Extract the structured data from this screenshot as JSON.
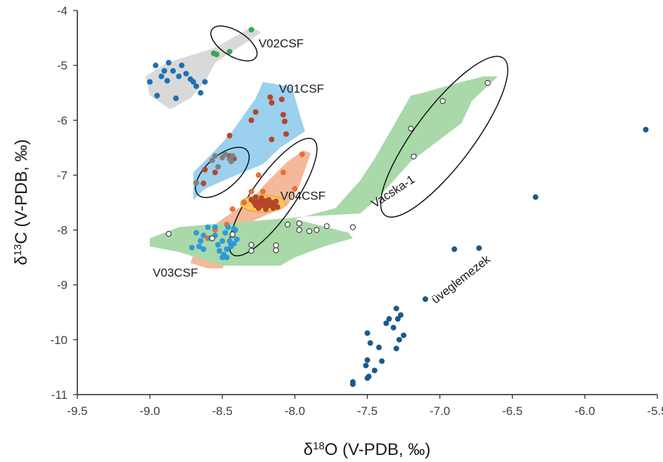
{
  "chart_data": {
    "type": "scatter",
    "x_axis": {
      "label_symbol": "δ",
      "label_sup": "18",
      "label_rest": "O (V-PDB, ‰)",
      "lim": [
        -9.5,
        -5.5
      ],
      "ticks": [
        -9.5,
        -9.0,
        -8.5,
        -8.0,
        -7.5,
        -7.0,
        -6.5,
        -6.0,
        -5.5
      ],
      "tick_labels": [
        "-9.5",
        "-9.0",
        "-8.5",
        "-8.0",
        "-7.5",
        "-7.0",
        "-6.5",
        "-6.0",
        "-5.5"
      ]
    },
    "y_axis": {
      "label_symbol": "δ",
      "label_sup": "13",
      "label_rest": "C (V-PDB, ‰)",
      "lim": [
        -11,
        -4
      ],
      "ticks": [
        -11,
        -10,
        -9,
        -8,
        -7,
        -6,
        -5,
        -4
      ],
      "tick_labels": [
        "-11",
        "-10",
        "-9",
        "-8",
        "-7",
        "-6",
        "-5",
        "-4"
      ]
    },
    "grid": false,
    "regions": [
      {
        "name": "gray",
        "color": "#d9d9d9",
        "points": [
          [
            -9.03,
            -5.2
          ],
          [
            -8.88,
            -4.95
          ],
          [
            -8.55,
            -4.68
          ],
          [
            -8.3,
            -4.3
          ],
          [
            -8.23,
            -4.4
          ],
          [
            -8.55,
            -4.95
          ],
          [
            -8.62,
            -5.3
          ],
          [
            -8.72,
            -5.6
          ],
          [
            -8.86,
            -5.8
          ],
          [
            -9.0,
            -5.55
          ]
        ]
      },
      {
        "name": "blue",
        "color": "#9bd0ee",
        "points": [
          [
            -8.7,
            -6.95
          ],
          [
            -8.55,
            -6.55
          ],
          [
            -8.43,
            -6.2
          ],
          [
            -8.27,
            -5.6
          ],
          [
            -8.22,
            -5.3
          ],
          [
            -8.02,
            -5.4
          ],
          [
            -7.96,
            -5.95
          ],
          [
            -7.93,
            -6.2
          ],
          [
            -8.1,
            -6.5
          ],
          [
            -8.22,
            -6.8
          ],
          [
            -8.45,
            -7.05
          ],
          [
            -8.62,
            -7.25
          ],
          [
            -8.7,
            -7.45
          ]
        ]
      },
      {
        "name": "orange",
        "color": "#f4b89a",
        "points": [
          [
            -8.72,
            -8.6
          ],
          [
            -8.65,
            -8.1
          ],
          [
            -8.5,
            -7.8
          ],
          [
            -8.3,
            -7.45
          ],
          [
            -8.2,
            -7.15
          ],
          [
            -8.05,
            -6.75
          ],
          [
            -7.94,
            -6.55
          ],
          [
            -7.89,
            -6.6
          ],
          [
            -7.97,
            -7.2
          ],
          [
            -8.05,
            -7.55
          ],
          [
            -8.3,
            -7.85
          ],
          [
            -8.4,
            -8.2
          ],
          [
            -8.5,
            -8.7
          ],
          [
            -8.6,
            -8.7
          ]
        ]
      },
      {
        "name": "green",
        "color": "#a9d8a9",
        "points": [
          [
            -9.0,
            -8.15
          ],
          [
            -8.8,
            -7.95
          ],
          [
            -8.6,
            -7.9
          ],
          [
            -8.35,
            -7.85
          ],
          [
            -7.9,
            -7.75
          ],
          [
            -7.55,
            -7.7
          ],
          [
            -7.42,
            -7.4
          ],
          [
            -7.2,
            -6.75
          ],
          [
            -6.85,
            -6.05
          ],
          [
            -6.78,
            -5.65
          ],
          [
            -6.6,
            -5.2
          ],
          [
            -6.7,
            -5.2
          ],
          [
            -6.85,
            -5.3
          ],
          [
            -7.12,
            -5.5
          ],
          [
            -7.2,
            -5.55
          ],
          [
            -7.45,
            -6.7
          ],
          [
            -7.55,
            -7.1
          ],
          [
            -7.72,
            -7.6
          ],
          [
            -8.0,
            -7.8
          ],
          [
            -7.63,
            -8.05
          ],
          [
            -7.6,
            -8.15
          ],
          [
            -7.8,
            -8.3
          ],
          [
            -8.0,
            -8.5
          ],
          [
            -8.1,
            -8.65
          ],
          [
            -8.5,
            -8.65
          ],
          [
            -8.8,
            -8.4
          ],
          [
            -9.0,
            -8.3
          ]
        ]
      }
    ],
    "ellipses": [
      {
        "name": "V02CSF",
        "fill": "none",
        "cx": -8.42,
        "cy": -4.6,
        "rx_deg": 0.18,
        "ry": 0.28,
        "angle": 0
      },
      {
        "name": "Vacska-1",
        "fill": "none",
        "cx": -6.97,
        "cy": -6.3,
        "rx_deg": 0.28,
        "ry": 1.25,
        "angle": 0
      },
      {
        "name": "V03CSF",
        "fill": "none",
        "cx": -8.5,
        "cy": -6.95,
        "rx_deg": 0.19,
        "ry": 0.45,
        "angle": 0
      },
      {
        "name": "V04CSF outer",
        "fill": "none",
        "cx": -8.15,
        "cy": -7.4,
        "rx_deg": 0.2,
        "ry": 0.62,
        "angle": 0
      },
      {
        "name": "V04CSF inner",
        "fill": "#f7c75a",
        "cx": -8.22,
        "cy": -7.52,
        "rx_deg": 0.14,
        "ry": 0.14,
        "angle": 0
      }
    ],
    "series": [
      {
        "color": "#1f6fb5",
        "marker": "filled",
        "points": [
          [
            -9.0,
            -5.3
          ],
          [
            -8.96,
            -5.0
          ],
          [
            -8.92,
            -5.2
          ],
          [
            -8.9,
            -5.1
          ],
          [
            -8.88,
            -5.28
          ],
          [
            -8.84,
            -5.1
          ],
          [
            -8.82,
            -5.6
          ],
          [
            -8.8,
            -5.2
          ],
          [
            -8.78,
            -5.0
          ],
          [
            -8.75,
            -5.15
          ],
          [
            -8.72,
            -5.25
          ],
          [
            -8.7,
            -5.3
          ],
          [
            -8.68,
            -5.38
          ],
          [
            -8.65,
            -5.5
          ],
          [
            -8.62,
            -5.3
          ],
          [
            -8.87,
            -4.95
          ],
          [
            -8.95,
            -5.55
          ]
        ]
      },
      {
        "color": "#38a852",
        "marker": "filled",
        "points": [
          [
            -8.56,
            -4.78
          ],
          [
            -8.54,
            -4.8
          ],
          [
            -8.45,
            -4.75
          ],
          [
            -8.3,
            -4.35
          ]
        ]
      },
      {
        "color": "#b5462a",
        "marker": "filled",
        "points": [
          [
            -8.17,
            -5.58
          ],
          [
            -8.16,
            -5.68
          ],
          [
            -8.09,
            -5.62
          ],
          [
            -8.08,
            -5.9
          ],
          [
            -8.07,
            -6.02
          ],
          [
            -8.27,
            -5.85
          ],
          [
            -8.3,
            -6.0
          ],
          [
            -8.45,
            -6.28
          ],
          [
            -8.16,
            -6.35
          ],
          [
            -8.06,
            -6.25
          ],
          [
            -8.62,
            -6.9
          ],
          [
            -8.63,
            -7.15
          ],
          [
            -8.55,
            -6.95
          ],
          [
            -8.45,
            -6.65
          ],
          [
            -8.42,
            -6.7
          ]
        ]
      },
      {
        "color": "#808080",
        "marker": "filled",
        "points": [
          [
            -8.68,
            -7.14
          ],
          [
            -8.57,
            -6.73
          ],
          [
            -8.55,
            -6.65
          ],
          [
            -8.5,
            -6.68
          ],
          [
            -8.48,
            -6.62
          ],
          [
            -8.45,
            -6.7
          ],
          [
            -8.44,
            -6.75
          ],
          [
            -8.53,
            -6.85
          ],
          [
            -8.43,
            -6.65
          ]
        ]
      },
      {
        "color": "#e8703a",
        "marker": "filled",
        "points": [
          [
            -7.95,
            -6.62
          ],
          [
            -8.08,
            -6.95
          ],
          [
            -8.25,
            -7.0
          ],
          [
            -8.3,
            -7.3
          ],
          [
            -8.35,
            -7.5
          ],
          [
            -8.43,
            -7.62
          ],
          [
            -8.47,
            -7.9
          ],
          [
            -8.55,
            -8.0
          ],
          [
            -8.6,
            -8.15
          ],
          [
            -8.22,
            -7.3
          ],
          [
            -8.0,
            -7.25
          ]
        ]
      },
      {
        "color": "#b5462a",
        "marker": "filled",
        "points": [
          [
            -8.3,
            -7.45
          ],
          [
            -8.28,
            -7.5
          ],
          [
            -8.27,
            -7.55
          ],
          [
            -8.26,
            -7.48
          ],
          [
            -8.25,
            -7.6
          ],
          [
            -8.24,
            -7.5
          ],
          [
            -8.23,
            -7.42
          ],
          [
            -8.22,
            -7.55
          ],
          [
            -8.21,
            -7.47
          ],
          [
            -8.2,
            -7.58
          ],
          [
            -8.19,
            -7.5
          ],
          [
            -8.18,
            -7.45
          ],
          [
            -8.17,
            -7.55
          ],
          [
            -8.16,
            -7.5
          ],
          [
            -8.15,
            -7.6
          ],
          [
            -8.14,
            -7.52
          ],
          [
            -8.13,
            -7.48
          ],
          [
            -8.12,
            -7.58
          ],
          [
            -8.2,
            -7.62
          ],
          [
            -8.27,
            -7.4
          ]
        ]
      },
      {
        "color": "#2e9ad8",
        "marker": "filled",
        "points": [
          [
            -8.71,
            -8.32
          ],
          [
            -8.68,
            -8.05
          ],
          [
            -8.65,
            -8.2
          ],
          [
            -8.63,
            -8.35
          ],
          [
            -8.6,
            -7.95
          ],
          [
            -8.58,
            -8.15
          ],
          [
            -8.55,
            -8.1
          ],
          [
            -8.53,
            -8.27
          ],
          [
            -8.5,
            -8.2
          ],
          [
            -8.49,
            -8.45
          ],
          [
            -8.48,
            -8.05
          ],
          [
            -8.47,
            -8.35
          ],
          [
            -8.46,
            -7.95
          ],
          [
            -8.45,
            -8.2
          ],
          [
            -8.44,
            -8.3
          ],
          [
            -8.43,
            -8.1
          ],
          [
            -8.42,
            -7.98
          ],
          [
            -8.42,
            -8.25
          ],
          [
            -8.41,
            -8.0
          ],
          [
            -8.5,
            -8.5
          ],
          [
            -8.47,
            -8.5
          ],
          [
            -8.55,
            -7.95
          ],
          [
            -8.63,
            -8.1
          ],
          [
            -8.66,
            -8.3
          ],
          [
            -8.52,
            -8.38
          ],
          [
            -8.4,
            -8.17
          ]
        ]
      },
      {
        "color": "#ffffff",
        "marker": "open",
        "points": [
          [
            -8.87,
            -8.07
          ],
          [
            -8.57,
            -8.15
          ],
          [
            -8.43,
            -8.08
          ],
          [
            -8.3,
            -8.27
          ],
          [
            -8.3,
            -8.38
          ],
          [
            -8.13,
            -8.28
          ],
          [
            -8.13,
            -8.37
          ],
          [
            -8.05,
            -7.9
          ],
          [
            -7.97,
            -7.88
          ],
          [
            -7.97,
            -8.0
          ],
          [
            -7.9,
            -8.02
          ],
          [
            -7.85,
            -8.0
          ],
          [
            -7.78,
            -7.93
          ],
          [
            -7.6,
            -7.95
          ],
          [
            -7.2,
            -6.15
          ],
          [
            -7.18,
            -6.66
          ],
          [
            -6.98,
            -5.65
          ],
          [
            -6.67,
            -5.32
          ]
        ]
      },
      {
        "color": "#1a5a8a",
        "marker": "filled",
        "points": [
          [
            -5.58,
            -6.17
          ],
          [
            -6.34,
            -7.4
          ],
          [
            -6.73,
            -8.33
          ],
          [
            -6.9,
            -8.35
          ],
          [
            -7.1,
            -9.26
          ],
          [
            -7.27,
            -9.55
          ],
          [
            -7.29,
            -9.62
          ],
          [
            -7.3,
            -9.43
          ],
          [
            -7.32,
            -9.78
          ],
          [
            -7.35,
            -9.62
          ],
          [
            -7.37,
            -9.7
          ],
          [
            -7.25,
            -9.92
          ],
          [
            -7.28,
            -10.0
          ],
          [
            -7.42,
            -10.14
          ],
          [
            -7.4,
            -10.39
          ],
          [
            -7.3,
            -10.16
          ],
          [
            -7.5,
            -9.88
          ],
          [
            -7.48,
            -10.06
          ],
          [
            -7.5,
            -10.37
          ],
          [
            -7.51,
            -10.47
          ],
          [
            -7.45,
            -10.56
          ],
          [
            -7.5,
            -10.7
          ],
          [
            -7.49,
            -10.67
          ],
          [
            -7.6,
            -10.77
          ],
          [
            -7.6,
            -10.81
          ]
        ]
      }
    ],
    "annotations": [
      {
        "text": "V02CSF",
        "x": -8.25,
        "y": -4.67,
        "rotate": 0,
        "anchor": "start"
      },
      {
        "text": "V01CSF",
        "x": -8.11,
        "y": -5.5,
        "rotate": 0,
        "anchor": "start"
      },
      {
        "text": "V04CSF",
        "x": -8.1,
        "y": -7.45,
        "rotate": 0,
        "anchor": "start"
      },
      {
        "text": "V03CSF",
        "x": -8.98,
        "y": -8.85,
        "rotate": 0,
        "anchor": "start"
      },
      {
        "text": "Vacska-1",
        "x": -7.45,
        "y": -7.6,
        "rotate": -33,
        "anchor": "start"
      },
      {
        "text": "üveglemezek",
        "x": -7.03,
        "y": -9.35,
        "rotate": -38,
        "anchor": "start"
      }
    ]
  }
}
